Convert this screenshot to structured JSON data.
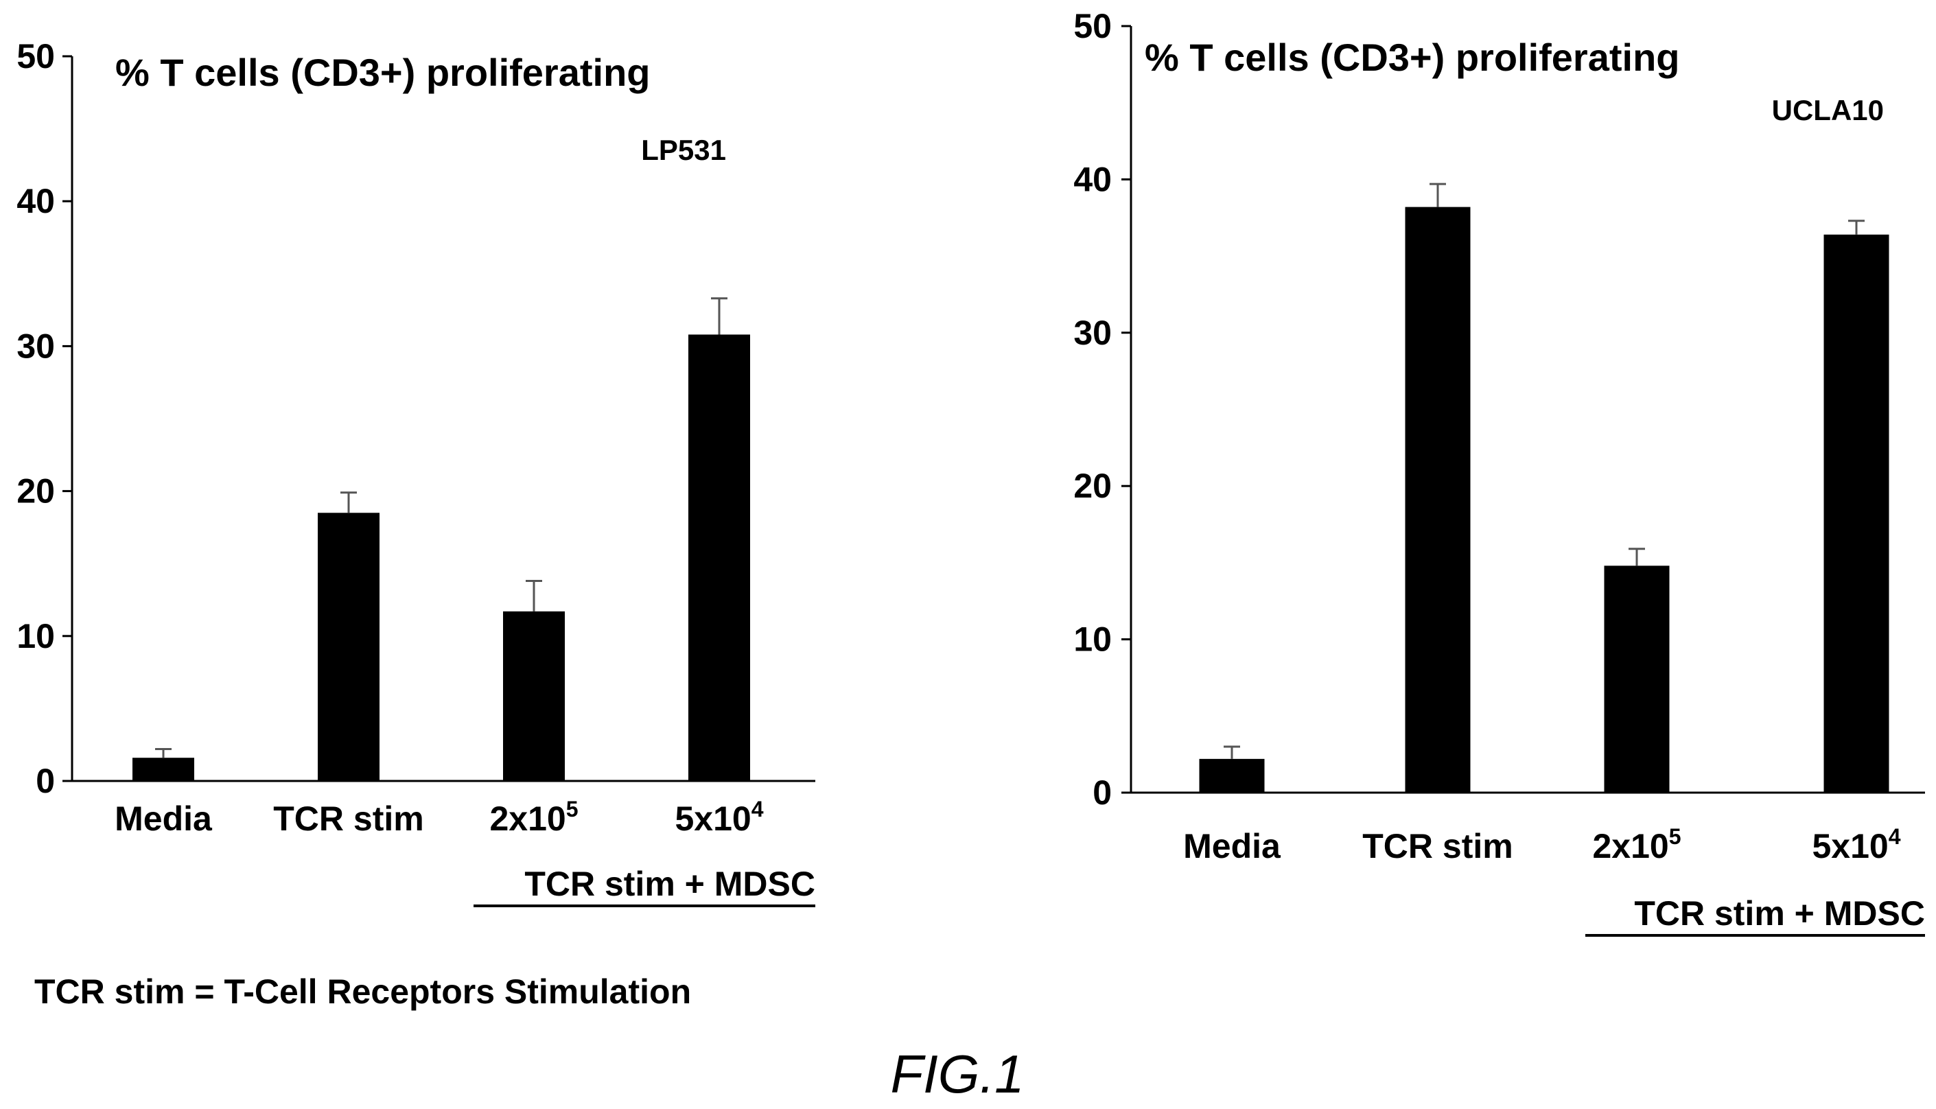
{
  "figure": {
    "caption": "FIG.1",
    "footnote": "TCR stim = T-Cell Receptors Stimulation"
  },
  "chart_data": [
    {
      "type": "bar",
      "title": "% T cells (CD3+) proliferating",
      "subtitle": "LP531",
      "categories": [
        "Media",
        "TCR stim",
        "2x10",
        "5x10"
      ],
      "category_superscripts": [
        "",
        "",
        "5",
        "4"
      ],
      "group_label": "TCR stim + MDSC",
      "values": [
        1.6,
        18.5,
        11.7,
        30.8
      ],
      "errors": [
        0.6,
        1.4,
        2.1,
        2.5
      ],
      "ylim": [
        0,
        50
      ],
      "yticks": [
        0,
        10,
        20,
        30,
        40,
        50
      ],
      "grid": false,
      "bar_color": "#000000"
    },
    {
      "type": "bar",
      "title": "% T cells (CD3+) proliferating",
      "subtitle": "UCLA10",
      "categories": [
        "Media",
        "TCR stim",
        "2x10",
        "5x10"
      ],
      "category_superscripts": [
        "",
        "",
        "5",
        "4"
      ],
      "group_label": "TCR stim + MDSC",
      "values": [
        2.2,
        38.2,
        14.8,
        36.4
      ],
      "errors": [
        0.8,
        1.5,
        1.1,
        0.9
      ],
      "ylim": [
        0,
        50
      ],
      "yticks": [
        0,
        10,
        20,
        30,
        40,
        50
      ],
      "grid": false,
      "bar_color": "#000000"
    }
  ]
}
